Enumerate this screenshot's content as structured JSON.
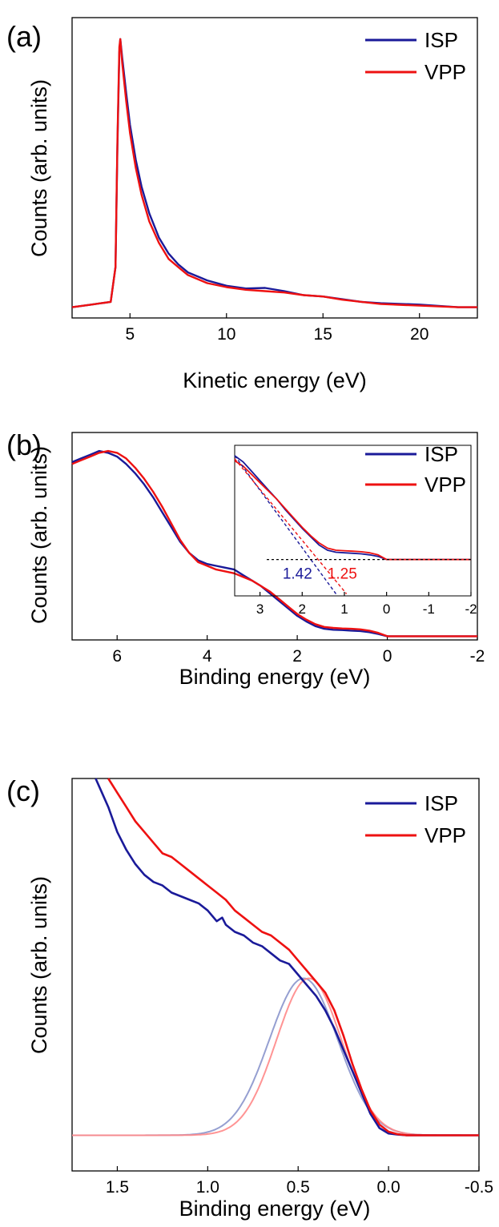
{
  "colors": {
    "isp": "#1a1a99",
    "vpp": "#ee1111",
    "isp_fit": "#8a95cc",
    "vpp_fit": "#ff8888",
    "axis": "#000000"
  },
  "chart_data": [
    {
      "panel_label": "(a)",
      "type": "line",
      "xlabel": "Kinetic energy (eV)",
      "ylabel": "Counts (arb. units)",
      "xlim": [
        2,
        23
      ],
      "ylim": [
        -0.04,
        1.08
      ],
      "xticks": [
        5,
        10,
        15,
        20
      ],
      "yticks": [],
      "legend": {
        "position": "top-right",
        "entries": [
          "ISP",
          "VPP"
        ]
      },
      "series": [
        {
          "name": "ISP",
          "x": [
            2,
            3,
            4,
            4.25,
            4.35,
            4.45,
            4.5,
            4.6,
            4.8,
            5.0,
            5.3,
            5.6,
            6.0,
            6.5,
            7.0,
            7.5,
            8.0,
            9.0,
            10.0,
            11.0,
            12.0,
            13.0,
            14.0,
            15.0,
            16.0,
            17.0,
            18.0,
            20.0,
            22.0,
            23.0
          ],
          "y": [
            0.0,
            0.01,
            0.02,
            0.15,
            0.6,
            0.95,
            1.0,
            0.93,
            0.8,
            0.68,
            0.55,
            0.45,
            0.35,
            0.26,
            0.2,
            0.16,
            0.13,
            0.1,
            0.08,
            0.07,
            0.072,
            0.06,
            0.045,
            0.04,
            0.03,
            0.02,
            0.015,
            0.01,
            0.0,
            0.0
          ]
        },
        {
          "name": "VPP",
          "x": [
            2,
            3,
            4,
            4.25,
            4.35,
            4.45,
            4.5,
            4.6,
            4.8,
            5.0,
            5.3,
            5.6,
            6.0,
            6.5,
            7.0,
            7.5,
            8.0,
            9.0,
            10.0,
            11.0,
            12.0,
            13.0,
            14.0,
            15.0,
            16.0,
            17.0,
            18.0,
            20.0,
            22.0,
            23.0
          ],
          "y": [
            0.0,
            0.01,
            0.02,
            0.15,
            0.62,
            0.97,
            1.0,
            0.91,
            0.77,
            0.65,
            0.52,
            0.42,
            0.32,
            0.24,
            0.18,
            0.15,
            0.12,
            0.09,
            0.075,
            0.065,
            0.06,
            0.055,
            0.045,
            0.04,
            0.028,
            0.02,
            0.012,
            0.006,
            0.0,
            0.0
          ]
        }
      ]
    },
    {
      "panel_label": "(b)",
      "type": "line",
      "xlabel": "Binding energy (eV)",
      "ylabel": "Counts (arb. units)",
      "xlim": [
        7,
        -2
      ],
      "ylim": [
        -0.02,
        1.1
      ],
      "xticks": [
        6,
        4,
        2,
        0,
        -2
      ],
      "yticks": [],
      "legend": {
        "position": "top-right",
        "entries": [
          "ISP",
          "VPP"
        ]
      },
      "series": [
        {
          "name": "ISP",
          "x": [
            7,
            6.8,
            6.6,
            6.4,
            6.2,
            6.0,
            5.8,
            5.6,
            5.4,
            5.2,
            5.0,
            4.8,
            4.6,
            4.4,
            4.2,
            4.0,
            3.8,
            3.6,
            3.4,
            3.2,
            3.0,
            2.8,
            2.6,
            2.4,
            2.2,
            2.0,
            1.8,
            1.6,
            1.4,
            1.2,
            1.0,
            0.8,
            0.6,
            0.4,
            0.2,
            0.0,
            -0.5,
            -1.0,
            -1.5,
            -2.0
          ],
          "y": [
            0.94,
            0.96,
            0.98,
            1.0,
            0.99,
            0.97,
            0.93,
            0.88,
            0.82,
            0.75,
            0.67,
            0.59,
            0.51,
            0.45,
            0.41,
            0.39,
            0.38,
            0.37,
            0.36,
            0.33,
            0.3,
            0.27,
            0.23,
            0.19,
            0.15,
            0.11,
            0.08,
            0.055,
            0.04,
            0.035,
            0.033,
            0.03,
            0.028,
            0.022,
            0.012,
            0.0,
            0.0,
            0.0,
            0.0,
            0.0
          ]
        },
        {
          "name": "VPP",
          "x": [
            7,
            6.8,
            6.6,
            6.4,
            6.2,
            6.0,
            5.8,
            5.6,
            5.4,
            5.2,
            5.0,
            4.8,
            4.6,
            4.4,
            4.2,
            4.0,
            3.8,
            3.6,
            3.4,
            3.2,
            3.0,
            2.8,
            2.6,
            2.4,
            2.2,
            2.0,
            1.8,
            1.6,
            1.4,
            1.2,
            1.0,
            0.8,
            0.6,
            0.4,
            0.2,
            0.0,
            -0.5,
            -1.0,
            -1.5,
            -2.0
          ],
          "y": [
            0.93,
            0.95,
            0.97,
            0.99,
            1.0,
            0.99,
            0.96,
            0.91,
            0.85,
            0.78,
            0.7,
            0.61,
            0.52,
            0.45,
            0.4,
            0.38,
            0.36,
            0.35,
            0.34,
            0.32,
            0.3,
            0.27,
            0.24,
            0.2,
            0.16,
            0.12,
            0.09,
            0.065,
            0.05,
            0.045,
            0.042,
            0.04,
            0.037,
            0.03,
            0.018,
            0.0,
            0.0,
            0.0,
            0.0,
            0.0
          ]
        }
      ],
      "inset": {
        "xlim": [
          3.6,
          -2
        ],
        "ylim": [
          -0.35,
          1.1
        ],
        "xticks": [
          3,
          2,
          1,
          0,
          -1,
          -2
        ],
        "annotations": [
          {
            "text": "1.42",
            "x": 1.42,
            "color": "#1a1a99"
          },
          {
            "text": "1.25",
            "x": 1.25,
            "color": "#ee1111"
          }
        ],
        "series": [
          {
            "name": "ISP",
            "x": [
              3.6,
              3.4,
              3.2,
              3.0,
              2.8,
              2.6,
              2.4,
              2.2,
              2.0,
              1.8,
              1.6,
              1.4,
              1.2,
              1.0,
              0.8,
              0.6,
              0.4,
              0.2,
              0.0,
              -0.5,
              -1.0,
              -1.5,
              -2.0
            ],
            "y": [
              1.0,
              0.94,
              0.85,
              0.76,
              0.67,
              0.58,
              0.48,
              0.39,
              0.3,
              0.22,
              0.14,
              0.09,
              0.07,
              0.065,
              0.06,
              0.055,
              0.045,
              0.03,
              0.0,
              0.0,
              0.0,
              0.0,
              0.0
            ]
          },
          {
            "name": "VPP",
            "x": [
              3.6,
              3.4,
              3.2,
              3.0,
              2.8,
              2.6,
              2.4,
              2.2,
              2.0,
              1.8,
              1.6,
              1.4,
              1.2,
              1.0,
              0.8,
              0.6,
              0.4,
              0.2,
              0.0,
              -0.5,
              -1.0,
              -1.5,
              -2.0
            ],
            "y": [
              0.95,
              0.9,
              0.82,
              0.74,
              0.66,
              0.58,
              0.49,
              0.4,
              0.31,
              0.23,
              0.16,
              0.11,
              0.09,
              0.085,
              0.08,
              0.075,
              0.065,
              0.045,
              0.0,
              0.0,
              0.0,
              0.0,
              0.0
            ]
          }
        ],
        "fits": [
          {
            "name": "ISP",
            "x": [
              3.6,
              1.2
            ],
            "y": [
              1.0,
              -0.33
            ]
          },
          {
            "name": "VPP",
            "x": [
              3.6,
              0.95
            ],
            "y": [
              0.97,
              -0.33
            ]
          }
        ]
      }
    },
    {
      "panel_label": "(c)",
      "type": "line",
      "xlabel": "Binding energy (eV)",
      "ylabel": "Counts (arb. units)",
      "xlim": [
        1.75,
        -0.5
      ],
      "ylim": [
        -0.1,
        1.0
      ],
      "xticks": [
        "1.5",
        "1.0",
        "0.5",
        "0.0",
        "-0.5"
      ],
      "yticks": [],
      "legend": {
        "position": "top-right",
        "entries": [
          "ISP",
          "VPP"
        ]
      },
      "series": [
        {
          "name": "ISP",
          "x": [
            1.62,
            1.55,
            1.5,
            1.45,
            1.4,
            1.35,
            1.3,
            1.25,
            1.2,
            1.15,
            1.1,
            1.05,
            1.0,
            0.95,
            0.92,
            0.9,
            0.85,
            0.8,
            0.75,
            0.7,
            0.65,
            0.6,
            0.55,
            0.5,
            0.45,
            0.4,
            0.35,
            0.3,
            0.25,
            0.2,
            0.15,
            0.1,
            0.05,
            0.0,
            -0.05,
            -0.1,
            -0.2,
            -0.3,
            -0.4,
            -0.5
          ],
          "y": [
            1.0,
            0.92,
            0.85,
            0.8,
            0.76,
            0.73,
            0.71,
            0.7,
            0.68,
            0.67,
            0.66,
            0.65,
            0.63,
            0.6,
            0.61,
            0.59,
            0.57,
            0.56,
            0.54,
            0.53,
            0.51,
            0.49,
            0.48,
            0.45,
            0.42,
            0.39,
            0.35,
            0.3,
            0.24,
            0.18,
            0.12,
            0.06,
            0.02,
            0.005,
            0.002,
            0.0,
            0.0,
            0.0,
            0.0,
            0.0
          ]
        },
        {
          "name": "VPP",
          "x": [
            1.55,
            1.5,
            1.45,
            1.4,
            1.35,
            1.3,
            1.25,
            1.2,
            1.15,
            1.1,
            1.05,
            1.0,
            0.95,
            0.9,
            0.85,
            0.8,
            0.75,
            0.7,
            0.65,
            0.6,
            0.55,
            0.5,
            0.45,
            0.4,
            0.35,
            0.3,
            0.25,
            0.2,
            0.15,
            0.1,
            0.05,
            0.0,
            -0.05,
            -0.1,
            -0.2,
            -0.3,
            -0.4,
            -0.5
          ],
          "y": [
            1.0,
            0.96,
            0.92,
            0.88,
            0.85,
            0.82,
            0.79,
            0.78,
            0.76,
            0.74,
            0.72,
            0.7,
            0.68,
            0.66,
            0.63,
            0.61,
            0.59,
            0.57,
            0.56,
            0.54,
            0.52,
            0.49,
            0.46,
            0.43,
            0.4,
            0.35,
            0.28,
            0.2,
            0.13,
            0.07,
            0.03,
            0.01,
            0.003,
            0.0,
            0.0,
            0.0,
            0.0,
            0.0
          ]
        }
      ],
      "fits": [
        {
          "name": "ISP",
          "center": 0.47,
          "height": 0.44,
          "sigma": 0.19
        },
        {
          "name": "VPP",
          "center": 0.44,
          "height": 0.44,
          "sigma": 0.18
        }
      ]
    }
  ]
}
